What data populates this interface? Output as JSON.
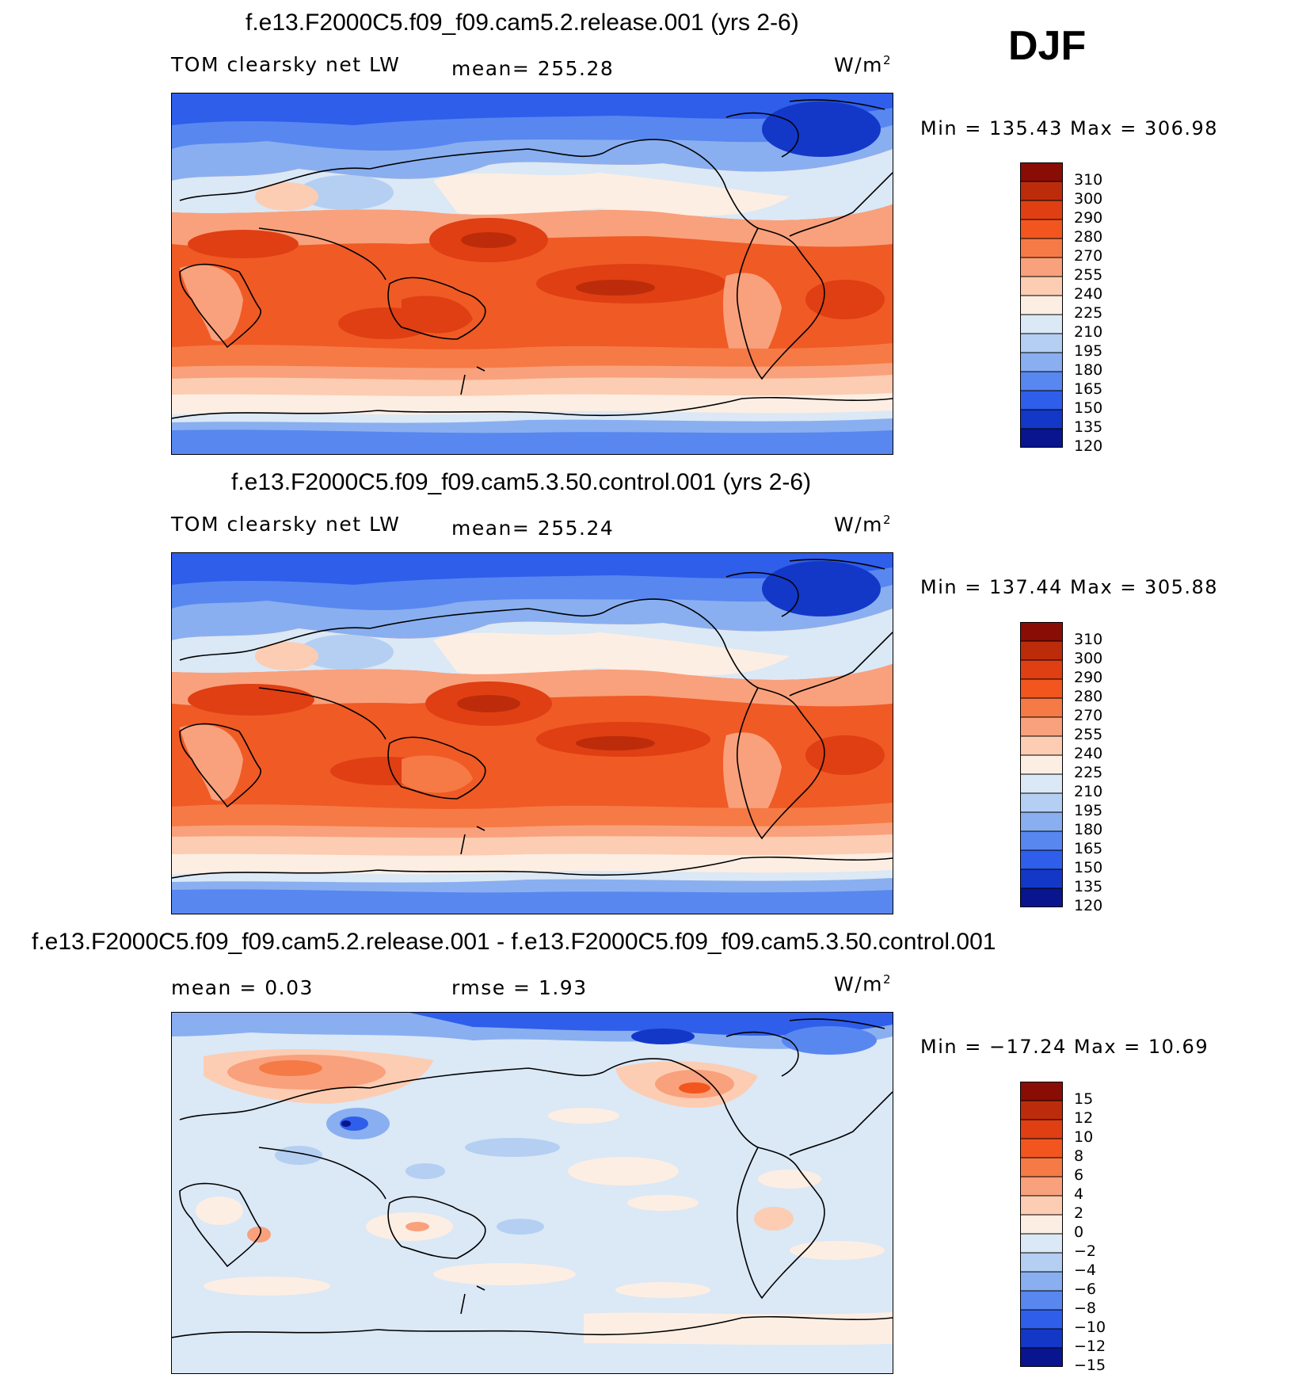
{
  "header": {
    "season": "DJF"
  },
  "panels": [
    {
      "title": "f.e13.F2000C5.f09_f09.cam5.2.release.001 (yrs 2-6)",
      "left_label": "TOM clearsky net LW",
      "mid_label": "mean=  255.28",
      "units_base": "W/m",
      "units_exp": "2",
      "minmax": "Min  =  135.43  Max  =  306.98"
    },
    {
      "title": "f.e13.F2000C5.f09_f09.cam5.3.50.control.001 (yrs 2-6)",
      "left_label": "TOM clearsky net LW",
      "mid_label": "mean=  255.24",
      "units_base": "W/m",
      "units_exp": "2",
      "minmax": "Min  =  137.44  Max  =  305.88"
    },
    {
      "title": "f.e13.F2000C5.f09_f09.cam5.2.release.001 - f.e13.F2000C5.f09_f09.cam5.3.50.control.001",
      "left_label": "mean  =     0.03",
      "mid_label": "rmse  =     1.93",
      "units_base": "W/m",
      "units_exp": "2",
      "minmax": "Min  =  −17.24  Max  =    10.69"
    }
  ],
  "chart_data": [
    {
      "type": "heatmap",
      "title": "f.e13.F2000C5.f09_f09.cam5.2.release.001 (yrs 2-6)",
      "variable": "TOM clearsky net LW",
      "units": "W/m2",
      "mean": 255.28,
      "min": 135.43,
      "max": 306.98,
      "levels": [
        "310",
        "300",
        "290",
        "280",
        "270",
        "255",
        "240",
        "225",
        "210",
        "195",
        "180",
        "165",
        "150",
        "135",
        "120"
      ],
      "colors": [
        "#8a0d05",
        "#bd2c0a",
        "#df3f13",
        "#f2561e",
        "#f67a45",
        "#f9a17c",
        "#fccdb2",
        "#fdeee3",
        "#dbe8f6",
        "#b4cff2",
        "#89aff0",
        "#5887f0",
        "#2f5eeb",
        "#1338c8",
        "#08158e"
      ]
    },
    {
      "type": "heatmap",
      "title": "f.e13.F2000C5.f09_f09.cam5.3.50.control.001 (yrs 2-6)",
      "variable": "TOM clearsky net LW",
      "units": "W/m2",
      "mean": 255.24,
      "min": 137.44,
      "max": 305.88,
      "levels": [
        "310",
        "300",
        "290",
        "280",
        "270",
        "255",
        "240",
        "225",
        "210",
        "195",
        "180",
        "165",
        "150",
        "135",
        "120"
      ],
      "colors": [
        "#8a0d05",
        "#bd2c0a",
        "#df3f13",
        "#f2561e",
        "#f67a45",
        "#f9a17c",
        "#fccdb2",
        "#fdeee3",
        "#dbe8f6",
        "#b4cff2",
        "#89aff0",
        "#5887f0",
        "#2f5eeb",
        "#1338c8",
        "#08158e"
      ]
    },
    {
      "type": "heatmap",
      "title": "f.e13.F2000C5.f09_f09.cam5.2.release.001 - f.e13.F2000C5.f09_f09.cam5.3.50.control.001",
      "units": "W/m2",
      "mean": 0.03,
      "rmse": 1.93,
      "min": -17.24,
      "max": 10.69,
      "levels": [
        "15",
        "12",
        "10",
        "8",
        "6",
        "4",
        "2",
        "0",
        "−2",
        "−4",
        "−6",
        "−8",
        "−10",
        "−12",
        "−15"
      ],
      "colors": [
        "#8a0d05",
        "#bd2c0a",
        "#df3f13",
        "#f2561e",
        "#f67a45",
        "#f9a17c",
        "#fccdb2",
        "#fdeee3",
        "#dbe8f6",
        "#b4cff2",
        "#89aff0",
        "#5887f0",
        "#2f5eeb",
        "#1338c8",
        "#08158e"
      ]
    }
  ]
}
